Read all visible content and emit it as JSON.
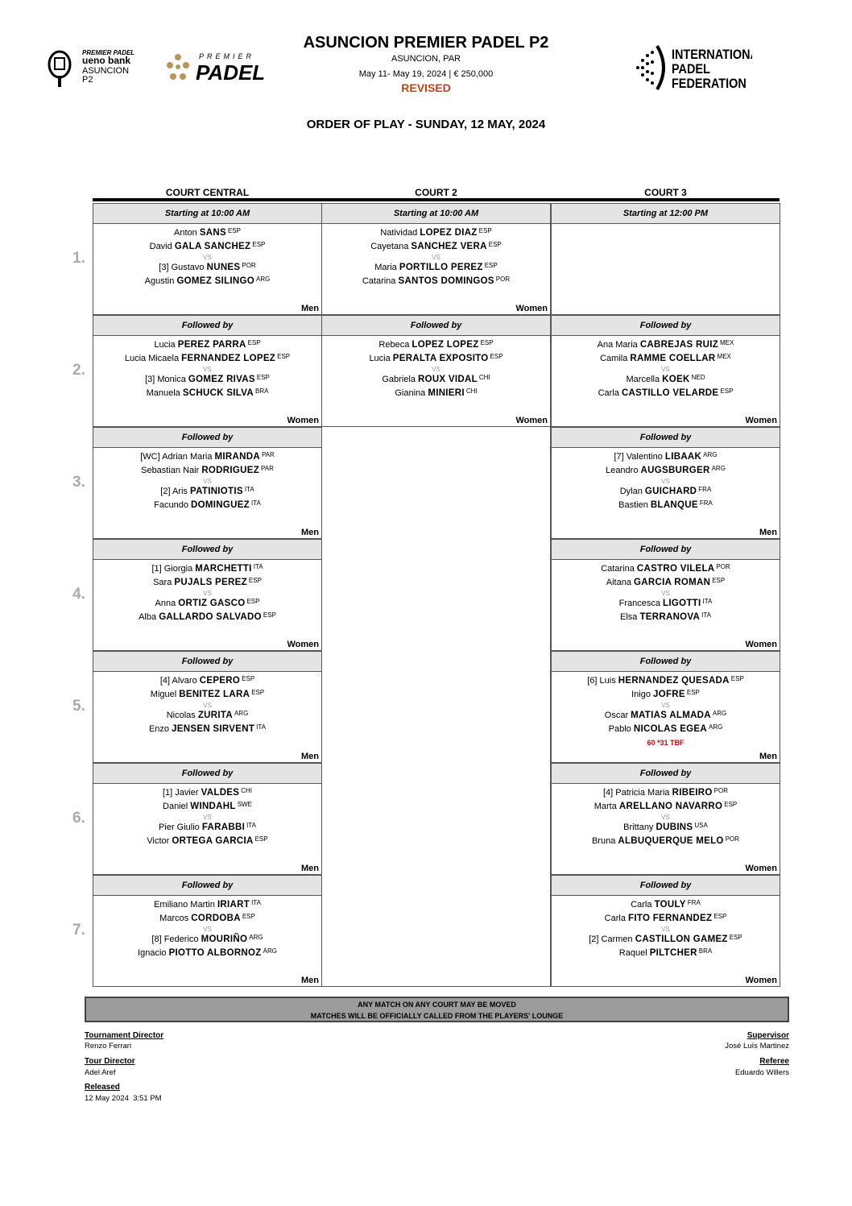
{
  "header": {
    "title": "ASUNCION PREMIER PADEL P2",
    "location": "ASUNCION, PAR",
    "dates_prize": "May 11- May 19, 2024  |  € 250,000",
    "status": "REVISED",
    "order_of_play": "ORDER OF PLAY - SUNDAY, 12 MAY, 2024",
    "logos": {
      "left": [
        "PREMIER PADEL",
        "ueno bank",
        "ASUNCION",
        "P2"
      ],
      "center": [
        "PREMIER",
        "PADEL"
      ],
      "right": [
        "INTERNATIONAL",
        "PADEL",
        "FEDERATION"
      ]
    },
    "accent_color": "#c8401a"
  },
  "courts": [
    "COURT CENTRAL",
    "COURT 2",
    "COURT 3"
  ],
  "rows": [
    {
      "num": "1.",
      "cells": [
        {
          "header": "Starting at 10:00 AM",
          "match": {
            "team1": [
              {
                "seed": "",
                "first": "Anton",
                "last": "SANS",
                "nat": "ESP"
              },
              {
                "seed": "",
                "first": "David",
                "last": "GALA SANCHEZ",
                "nat": "ESP"
              }
            ],
            "vs": "VS",
            "team2": [
              {
                "seed": "[3]",
                "first": "Gustavo",
                "last": "NUNES",
                "nat": "POR"
              },
              {
                "seed": "",
                "first": "Agustin",
                "last": "GOMEZ SILINGO",
                "nat": "ARG"
              }
            ],
            "category": "Men"
          }
        },
        {
          "header": "Starting at 10:00 AM",
          "match": {
            "team1": [
              {
                "seed": "",
                "first": "Natividad",
                "last": "LOPEZ DIAZ",
                "nat": "ESP"
              },
              {
                "seed": "",
                "first": "Cayetana",
                "last": "SANCHEZ VERA",
                "nat": "ESP"
              }
            ],
            "vs": "VS",
            "team2": [
              {
                "seed": "",
                "first": "Maria",
                "last": "PORTILLO PEREZ",
                "nat": "ESP"
              },
              {
                "seed": "",
                "first": "Catarina",
                "last": "SANTOS DOMINGOS",
                "nat": "POR"
              }
            ],
            "category": "Women"
          }
        },
        {
          "header": "Starting at 12:00 PM",
          "match": null
        }
      ]
    },
    {
      "num": "2.",
      "cells": [
        {
          "header": "Followed by",
          "match": {
            "team1": [
              {
                "seed": "",
                "first": "Lucia",
                "last": "PEREZ PARRA",
                "nat": "ESP"
              },
              {
                "seed": "",
                "first": "Lucia Micaela",
                "last": "FERNANDEZ LOPEZ",
                "nat": "ESP"
              }
            ],
            "vs": "VS",
            "team2": [
              {
                "seed": "[3]",
                "first": "Monica",
                "last": "GOMEZ RIVAS",
                "nat": "ESP"
              },
              {
                "seed": "",
                "first": "Manuela",
                "last": "SCHUCK SILVA",
                "nat": "BRA"
              }
            ],
            "category": "Women"
          }
        },
        {
          "header": "Followed by",
          "match": {
            "team1": [
              {
                "seed": "",
                "first": "Rebeca",
                "last": "LOPEZ LOPEZ",
                "nat": "ESP"
              },
              {
                "seed": "",
                "first": "Lucia",
                "last": "PERALTA EXPOSITO",
                "nat": "ESP"
              }
            ],
            "vs": "VS",
            "team2": [
              {
                "seed": "",
                "first": "Gabriela",
                "last": "ROUX VIDAL",
                "nat": "CHI"
              },
              {
                "seed": "",
                "first": "Gianina",
                "last": "MINIERI",
                "nat": "CHI"
              }
            ],
            "category": "Women"
          }
        },
        {
          "header": "Followed by",
          "match": {
            "team1": [
              {
                "seed": "",
                "first": "Ana Maria",
                "last": "CABREJAS RUIZ",
                "nat": "MEX"
              },
              {
                "seed": "",
                "first": "Camila",
                "last": "RAMME COELLAR",
                "nat": "MEX"
              }
            ],
            "vs": "VS",
            "team2": [
              {
                "seed": "",
                "first": "Marcella",
                "last": "KOEK",
                "nat": "NED"
              },
              {
                "seed": "",
                "first": "Carla",
                "last": "CASTILLO VELARDE",
                "nat": "ESP"
              }
            ],
            "category": "Women"
          }
        }
      ]
    },
    {
      "num": "3.",
      "cells": [
        {
          "header": "Followed by",
          "match": {
            "team1": [
              {
                "seed": "[WC]",
                "first": "Adrian Maria",
                "last": "MIRANDA",
                "nat": "PAR"
              },
              {
                "seed": "",
                "first": "Sebastian Nair",
                "last": "RODRIGUEZ",
                "nat": "PAR"
              }
            ],
            "vs": "VS",
            "team2": [
              {
                "seed": "[2]",
                "first": "Aris",
                "last": "PATINIOTIS",
                "nat": "ITA"
              },
              {
                "seed": "",
                "first": "Facundo",
                "last": "DOMINGUEZ",
                "nat": "ITA"
              }
            ],
            "category": "Men"
          }
        },
        null,
        {
          "header": "Followed by",
          "match": {
            "team1": [
              {
                "seed": "[7]",
                "first": "Valentino",
                "last": "LIBAAK",
                "nat": "ARG"
              },
              {
                "seed": "",
                "first": "Leandro",
                "last": "AUGSBURGER",
                "nat": "ARG"
              }
            ],
            "vs": "VS",
            "team2": [
              {
                "seed": "",
                "first": "Dylan",
                "last": "GUICHARD",
                "nat": "FRA"
              },
              {
                "seed": "",
                "first": "Bastien",
                "last": "BLANQUE",
                "nat": "FRA"
              }
            ],
            "category": "Men"
          }
        }
      ]
    },
    {
      "num": "4.",
      "cells": [
        {
          "header": "Followed by",
          "match": {
            "team1": [
              {
                "seed": "[1]",
                "first": "Giorgia",
                "last": "MARCHETTI",
                "nat": "ITA"
              },
              {
                "seed": "",
                "first": "Sara",
                "last": "PUJALS PEREZ",
                "nat": "ESP"
              }
            ],
            "vs": "VS",
            "team2": [
              {
                "seed": "",
                "first": "Anna",
                "last": "ORTIZ GASCO",
                "nat": "ESP"
              },
              {
                "seed": "",
                "first": "Alba",
                "last": "GALLARDO SALVADO",
                "nat": "ESP"
              }
            ],
            "category": "Women"
          }
        },
        null,
        {
          "header": "Followed by",
          "match": {
            "team1": [
              {
                "seed": "",
                "first": "Catarina",
                "last": "CASTRO VILELA",
                "nat": "POR"
              },
              {
                "seed": "",
                "first": "Aitana",
                "last": "GARCIA ROMAN",
                "nat": "ESP"
              }
            ],
            "vs": "VS",
            "team2": [
              {
                "seed": "",
                "first": "Francesca",
                "last": "LIGOTTI",
                "nat": "ITA"
              },
              {
                "seed": "",
                "first": "Elsa",
                "last": "TERRANOVA",
                "nat": "ITA"
              }
            ],
            "category": "Women"
          }
        }
      ]
    },
    {
      "num": "5.",
      "cells": [
        {
          "header": "Followed by",
          "match": {
            "team1": [
              {
                "seed": "[4]",
                "first": "Alvaro",
                "last": "CEPERO",
                "nat": "ESP"
              },
              {
                "seed": "",
                "first": "Miguel",
                "last": "BENITEZ LARA",
                "nat": "ESP"
              }
            ],
            "vs": "VS",
            "team2": [
              {
                "seed": "",
                "first": "Nicolas",
                "last": "ZURITA",
                "nat": "ARG"
              },
              {
                "seed": "",
                "first": "Enzo",
                "last": "JENSEN SIRVENT",
                "nat": "ITA"
              }
            ],
            "category": "Men"
          }
        },
        null,
        {
          "header": "Followed by",
          "match": {
            "team1": [
              {
                "seed": "[6]",
                "first": "Luis",
                "last": "HERNANDEZ QUESADA",
                "nat": "ESP"
              },
              {
                "seed": "",
                "first": "Inigo",
                "last": "JOFRE",
                "nat": "ESP"
              }
            ],
            "vs": "VS",
            "team2": [
              {
                "seed": "",
                "first": "Oscar",
                "last": "MATIAS ALMADA",
                "nat": "ARG"
              },
              {
                "seed": "",
                "first": "Pablo",
                "last": "NICOLAS EGEA",
                "nat": "ARG"
              }
            ],
            "note": "60 *31 TBF",
            "category": "Men"
          }
        }
      ]
    },
    {
      "num": "6.",
      "cells": [
        {
          "header": "Followed by",
          "match": {
            "team1": [
              {
                "seed": "[1]",
                "first": "Javier",
                "last": "VALDES",
                "nat": "CHI"
              },
              {
                "seed": "",
                "first": "Daniel",
                "last": "WINDAHL",
                "nat": "SWE"
              }
            ],
            "vs": "VS",
            "team2": [
              {
                "seed": "",
                "first": "Pier Giulio",
                "last": "FARABBI",
                "nat": "ITA"
              },
              {
                "seed": "",
                "first": "Victor",
                "last": "ORTEGA GARCIA",
                "nat": "ESP"
              }
            ],
            "category": "Men"
          }
        },
        null,
        {
          "header": "Followed by",
          "match": {
            "team1": [
              {
                "seed": "[4]",
                "first": "Patricia Maria",
                "last": "RIBEIRO",
                "nat": "POR"
              },
              {
                "seed": "",
                "first": "Marta",
                "last": "ARELLANO NAVARRO",
                "nat": "ESP"
              }
            ],
            "vs": "VS",
            "team2": [
              {
                "seed": "",
                "first": "Brittany",
                "last": "DUBINS",
                "nat": "USA"
              },
              {
                "seed": "",
                "first": "Bruna",
                "last": "ALBUQUERQUE MELO",
                "nat": "POR"
              }
            ],
            "category": "Women"
          }
        }
      ]
    },
    {
      "num": "7.",
      "cells": [
        {
          "header": "Followed by",
          "match": {
            "team1": [
              {
                "seed": "",
                "first": "Emiliano Martin",
                "last": "IRIART",
                "nat": "ITA"
              },
              {
                "seed": "",
                "first": "Marcos",
                "last": "CORDOBA",
                "nat": "ESP"
              }
            ],
            "vs": "VS",
            "team2": [
              {
                "seed": "[8]",
                "first": "Federico",
                "last": "MOURIÑO",
                "nat": "ARG"
              },
              {
                "seed": "",
                "first": "Ignacio",
                "last": "PIOTTO ALBORNOZ",
                "nat": "ARG"
              }
            ],
            "category": "Men"
          }
        },
        null,
        {
          "header": "Followed by",
          "match": {
            "team1": [
              {
                "seed": "",
                "first": "Carla",
                "last": "TOULY",
                "nat": "FRA"
              },
              {
                "seed": "",
                "first": "Carla",
                "last": "FITO FERNANDEZ",
                "nat": "ESP"
              }
            ],
            "vs": "VS",
            "team2": [
              {
                "seed": "[2]",
                "first": "Carmen",
                "last": "CASTILLON GAMEZ",
                "nat": "ESP"
              },
              {
                "seed": "",
                "first": "Raquel",
                "last": "PILTCHER",
                "nat": "BRA"
              }
            ],
            "category": "Women"
          }
        }
      ]
    }
  ],
  "banner": [
    "ANY MATCH ON ANY COURT MAY BE MOVED",
    "MATCHES WILL BE OFFICIALLY CALLED FROM THE PLAYERS' LOUNGE"
  ],
  "officials": {
    "tournament_director": {
      "label": "Tournament Director",
      "name": "Renzo Ferrari"
    },
    "tour_director": {
      "label": "Tour Director",
      "name": "Adel Aref"
    },
    "released": {
      "label": "Released",
      "value": "12 May 2024  3:51 PM"
    },
    "supervisor": {
      "label": "Supervisor",
      "name": "José Luís Martinez"
    },
    "referee": {
      "label": "Referee",
      "name": "Eduardo Willers"
    }
  }
}
